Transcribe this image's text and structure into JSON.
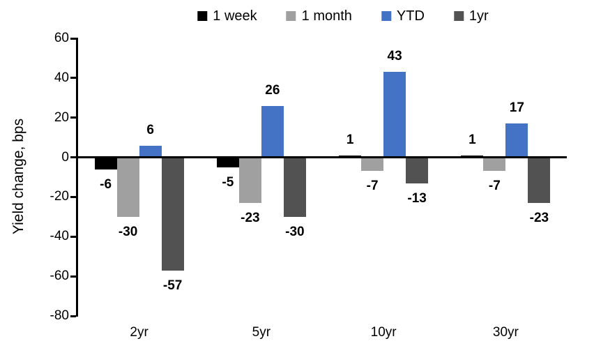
{
  "chart_data": {
    "type": "bar",
    "title": "",
    "categories": [
      "2yr",
      "5yr",
      "10yr",
      "30yr"
    ],
    "series": [
      {
        "name": "1 week",
        "color": "#000000",
        "values": [
          -6,
          -5,
          1,
          1
        ]
      },
      {
        "name": "1 month",
        "color": "#A0A0A0",
        "values": [
          -30,
          -23,
          -7,
          -7
        ]
      },
      {
        "name": "YTD",
        "color": "#4472C4",
        "values": [
          6,
          26,
          43,
          17
        ]
      },
      {
        "name": "1yr",
        "color": "#525252",
        "values": [
          -57,
          -30,
          -13,
          -23
        ]
      }
    ],
    "xlabel": "",
    "ylabel": "Yield change, bps",
    "ylim": [
      -80,
      60
    ],
    "yticks": [
      60,
      40,
      20,
      0,
      -20,
      -40,
      -60,
      -80
    ],
    "grid": false,
    "legend_position": "top",
    "value_labels": true,
    "axis_color": "#000000",
    "background_color": "#FFFFFF"
  }
}
